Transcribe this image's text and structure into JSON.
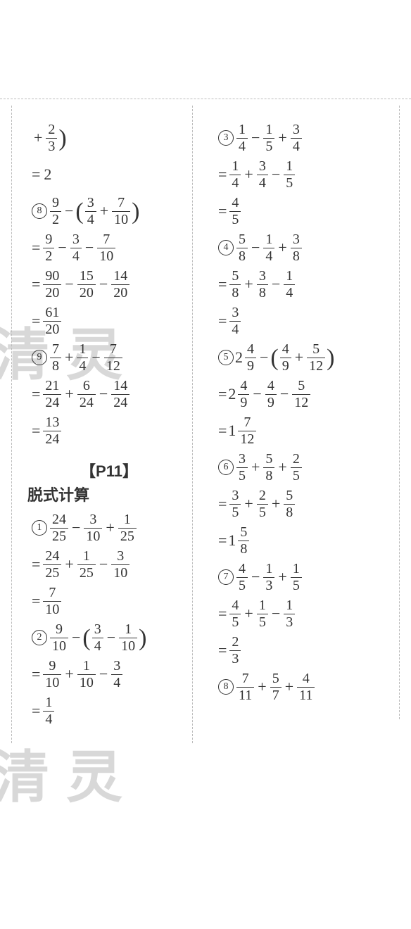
{
  "page_border": {
    "dash_color": "#bbbbbb",
    "dash_width": 1
  },
  "text_color": "#333333",
  "background_color": "#ffffff",
  "font_family": "Songti SC / SimSun",
  "base_fontsize": 22,
  "watermark": {
    "text1": "清灵",
    "text2": "清灵",
    "color": "#aaaaaa",
    "opacity": 0.45,
    "fontsize": 80
  },
  "section": {
    "header": "【P11】",
    "subtitle": "脱式计算"
  },
  "left_column": [
    {
      "type": "expr",
      "tokens": [
        "op:+",
        "frac:2/3",
        "rparen"
      ]
    },
    {
      "type": "result",
      "tokens": [
        "eq",
        "int:2"
      ]
    },
    {
      "type": "expr",
      "tokens": [
        "circ:8",
        "frac:9/2",
        "op:−",
        "lparen",
        "frac:3/4",
        "op:+",
        "frac:7/10",
        "rparen"
      ]
    },
    {
      "type": "step",
      "tokens": [
        "eq",
        "frac:9/2",
        "op:−",
        "frac:3/4",
        "op:−",
        "frac:7/10"
      ]
    },
    {
      "type": "step",
      "tokens": [
        "eq",
        "frac:90/20",
        "op:−",
        "frac:15/20",
        "op:−",
        "frac:14/20"
      ]
    },
    {
      "type": "result",
      "tokens": [
        "eq",
        "frac:61/20"
      ]
    },
    {
      "type": "expr",
      "tokens": [
        "circ:9",
        "frac:7/8",
        "op:+",
        "frac:1/4",
        "op:−",
        "frac:7/12"
      ]
    },
    {
      "type": "step",
      "tokens": [
        "eq",
        "frac:21/24",
        "op:+",
        "frac:6/24",
        "op:−",
        "frac:14/24"
      ]
    },
    {
      "type": "result",
      "tokens": [
        "eq",
        "frac:13/24"
      ]
    },
    {
      "type": "section-header"
    },
    {
      "type": "section-sub"
    },
    {
      "type": "expr",
      "tokens": [
        "circ:1",
        "frac:24/25",
        "op:−",
        "frac:3/10",
        "op:+",
        "frac:1/25"
      ]
    },
    {
      "type": "step",
      "tokens": [
        "eq",
        "frac:24/25",
        "op:+",
        "frac:1/25",
        "op:−",
        "frac:3/10"
      ]
    },
    {
      "type": "result",
      "tokens": [
        "eq",
        "frac:7/10"
      ]
    },
    {
      "type": "expr",
      "tokens": [
        "circ:2",
        "frac:9/10",
        "op:−",
        "lparen",
        "frac:3/4",
        "op:−",
        "frac:1/10",
        "rparen"
      ]
    },
    {
      "type": "step",
      "tokens": [
        "eq",
        "frac:9/10",
        "op:+",
        "frac:1/10",
        "op:−",
        "frac:3/4"
      ]
    },
    {
      "type": "result",
      "tokens": [
        "eq",
        "frac:1/4"
      ]
    }
  ],
  "right_column": [
    {
      "type": "expr",
      "tokens": [
        "circ:3",
        "frac:1/4",
        "op:−",
        "frac:1/5",
        "op:+",
        "frac:3/4"
      ]
    },
    {
      "type": "step",
      "tokens": [
        "eq",
        "frac:1/4",
        "op:+",
        "frac:3/4",
        "op:−",
        "frac:1/5"
      ]
    },
    {
      "type": "result",
      "tokens": [
        "eq",
        "frac:4/5"
      ]
    },
    {
      "type": "expr",
      "tokens": [
        "circ:4",
        "frac:5/8",
        "op:−",
        "frac:1/4",
        "op:+",
        "frac:3/8"
      ]
    },
    {
      "type": "step",
      "tokens": [
        "eq",
        "frac:5/8",
        "op:+",
        "frac:3/8",
        "op:−",
        "frac:1/4"
      ]
    },
    {
      "type": "result",
      "tokens": [
        "eq",
        "frac:3/4"
      ]
    },
    {
      "type": "expr",
      "tokens": [
        "circ:5",
        "mixed:2:4/9",
        "op:−",
        "lparen",
        "frac:4/9",
        "op:+",
        "frac:5/12",
        "rparen"
      ]
    },
    {
      "type": "step",
      "tokens": [
        "eq",
        "mixed:2:4/9",
        "op:−",
        "frac:4/9",
        "op:−",
        "frac:5/12"
      ]
    },
    {
      "type": "result",
      "tokens": [
        "eq",
        "mixed:1:7/12"
      ]
    },
    {
      "type": "expr",
      "tokens": [
        "circ:6",
        "frac:3/5",
        "op:+",
        "frac:5/8",
        "op:+",
        "frac:2/5"
      ]
    },
    {
      "type": "step",
      "tokens": [
        "eq",
        "frac:3/5",
        "op:+",
        "frac:2/5",
        "op:+",
        "frac:5/8"
      ]
    },
    {
      "type": "result",
      "tokens": [
        "eq",
        "mixed:1:5/8"
      ]
    },
    {
      "type": "expr",
      "tokens": [
        "circ:7",
        "frac:4/5",
        "op:−",
        "frac:1/3",
        "op:+",
        "frac:1/5"
      ]
    },
    {
      "type": "step",
      "tokens": [
        "eq",
        "frac:4/5",
        "op:+",
        "frac:1/5",
        "op:−",
        "frac:1/3"
      ]
    },
    {
      "type": "result",
      "tokens": [
        "eq",
        "frac:2/3"
      ]
    },
    {
      "type": "expr",
      "tokens": [
        "circ:8",
        "frac:7/11",
        "op:+",
        "frac:5/7",
        "op:+",
        "frac:4/11"
      ]
    }
  ]
}
